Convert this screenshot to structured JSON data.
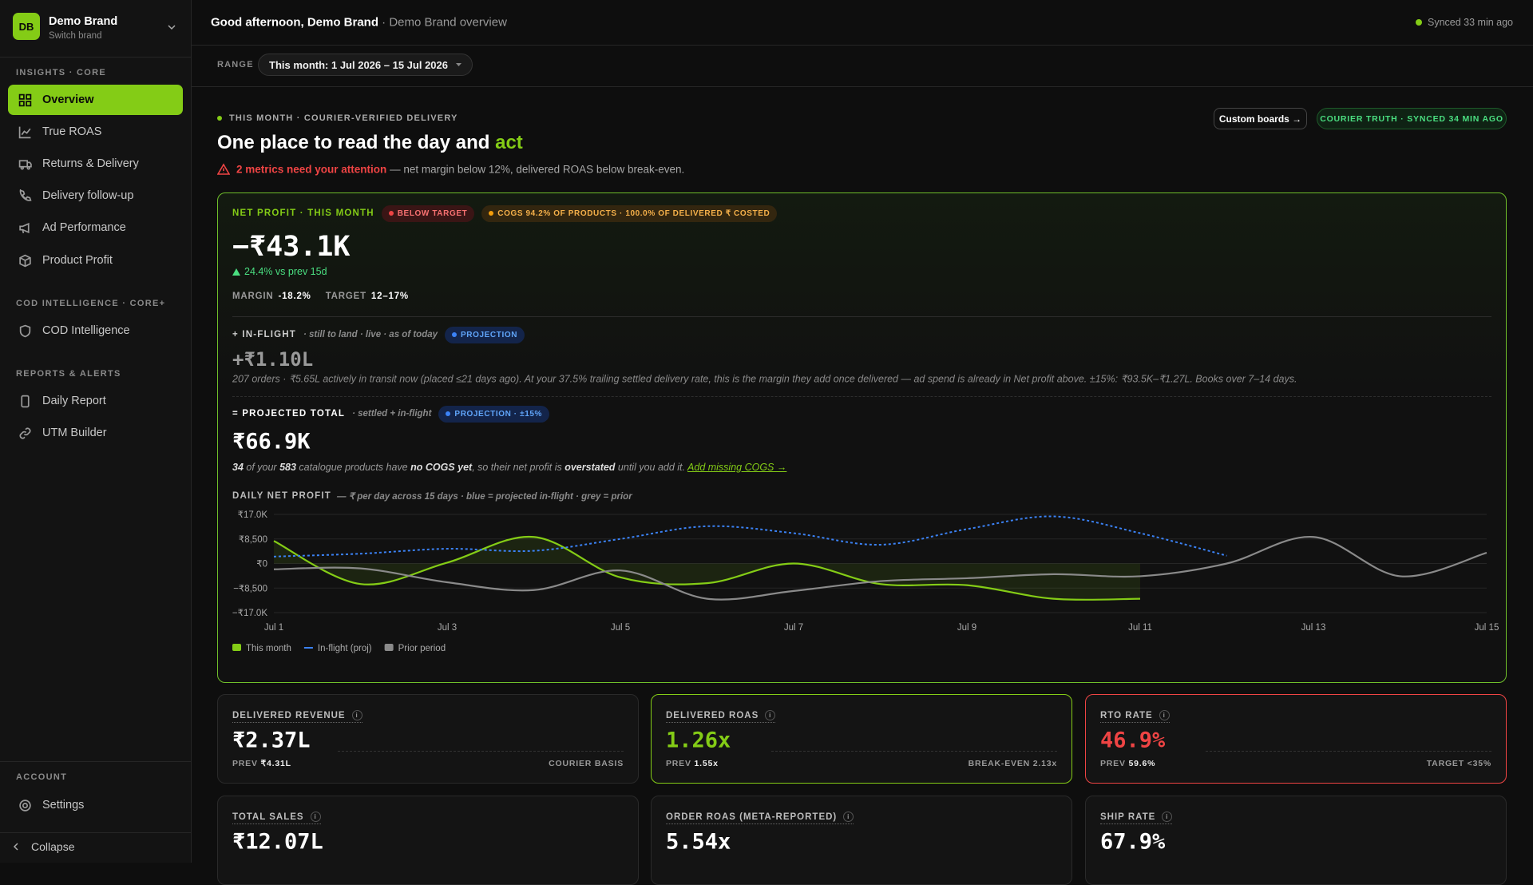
{
  "sidebar": {
    "brand_initials": "DB",
    "brand_name": "Demo Brand",
    "brand_sub": "Switch brand",
    "sections": [
      {
        "title": "INSIGHTS · CORE",
        "items": [
          "Overview",
          "True ROAS",
          "Returns & Delivery",
          "Delivery follow-up",
          "Ad Performance",
          "Product Profit"
        ]
      },
      {
        "title": "COD INTELLIGENCE · CORE+",
        "items": [
          "COD Intelligence"
        ]
      },
      {
        "title": "REPORTS & ALERTS",
        "items": [
          "Daily Report",
          "UTM Builder"
        ]
      },
      {
        "title": "ACCOUNT",
        "items": [
          "Settings"
        ]
      }
    ],
    "collapse": "Collapse"
  },
  "header": {
    "greeting": "Good afternoon, Demo Brand",
    "subtitle": "· Demo Brand overview",
    "sync_status": "Synced 33 min ago"
  },
  "range": {
    "label": "RANGE",
    "value": "This month: 1 Jul 2026 – 15 Jul 2026"
  },
  "hero": {
    "eyebrow": "THIS MONTH · COURIER-VERIFIED DELIVERY",
    "title": "One place to read the day and",
    "title_accent": "act",
    "button": "Custom boards →",
    "status_pill": "COURIER TRUTH · SYNCED 34 MIN AGO",
    "alert": "2 metrics need your attention",
    "alert_detail": "— net margin below 12%, delivered ROAS below break-even."
  },
  "net_profit": {
    "label": "NET PROFIT · THIS MONTH",
    "badges": [
      "BELOW TARGET",
      "COGS 94.2% OF PRODUCTS · 100.0% OF DELIVERED ₹ COSTED"
    ],
    "value": "−₹43.1K",
    "delta": "24.4% vs prev 15d",
    "margin_label": "MARGIN",
    "margin": "-18.2%",
    "target_label": "TARGET",
    "target": "12–17%"
  },
  "in_flight": {
    "label": "+ IN-FLIGHT",
    "sublabel": "· still to land · live · as of today",
    "badge": "PROJECTION",
    "value": "+₹1.10L",
    "description": "207 orders · ₹5.65L actively in transit now (placed ≤21 days ago). At your 37.5% trailing settled delivery rate, this is the margin they add once delivered — ad spend is already in Net profit above. ±15%: ₹93.5K–₹1.27L. Books over 7–14 days."
  },
  "projected_total": {
    "label": "= PROJECTED TOTAL",
    "sublabel": "· settled + in-flight",
    "badge": "PROJECTION · ±15%",
    "value": "₹66.9K",
    "note": [
      "34",
      " of your ",
      "583",
      " catalogue products have ",
      "no COGS yet",
      ", so their net profit is ",
      "overstated",
      " until you add it. "
    ],
    "link": "Add missing COGS →"
  },
  "chart": {
    "type": "line",
    "title": "DAILY NET PROFIT",
    "subtitle": "— ₹ per day across 15 days · blue = projected in-flight · grey = prior",
    "categories": [
      "Jul 1",
      null,
      "Jul 3",
      null,
      "Jul 5",
      null,
      "Jul 7",
      null,
      "Jul 9",
      null,
      "Jul 11",
      null,
      "Jul 13",
      null,
      "Jul 15"
    ],
    "ylim": [
      -17000,
      17000
    ],
    "yticks": [
      {
        "value": 17000,
        "label": "₹17.0K"
      },
      {
        "value": 8500,
        "label": "₹8,500"
      },
      {
        "value": 0,
        "label": "₹0"
      },
      {
        "value": -8500,
        "label": "−₹8,500"
      },
      {
        "value": -17000,
        "label": "−₹17.0K"
      }
    ],
    "grid": true,
    "series": [
      {
        "name": "This month",
        "color": "#84cc16",
        "values": [
          7800,
          -7100,
          300,
          9200,
          -4800,
          -6800,
          0,
          -7100,
          -7500,
          -12200,
          -12200,
          null,
          null,
          null,
          null
        ]
      },
      {
        "name": "In-flight (proj)",
        "color": "#3b82f6",
        "dashed": true,
        "values": [
          2400,
          3400,
          5100,
          4400,
          8500,
          12900,
          10500,
          6500,
          11900,
          16300,
          10500,
          2700,
          null,
          null,
          null
        ]
      },
      {
        "name": "Prior period",
        "color": "#8a8a8a",
        "values": [
          -2000,
          -1700,
          -6500,
          -9200,
          -2400,
          -12200,
          -9500,
          -6100,
          -5100,
          -3700,
          -4400,
          0,
          9200,
          -4400,
          3700
        ]
      }
    ]
  },
  "kpis": [
    {
      "label": "DELIVERED REVENUE",
      "value": "₹2.37L",
      "prev_label": "PREV",
      "prev": "₹4.31L",
      "note": "COURIER BASIS"
    },
    {
      "label": "DELIVERED ROAS",
      "value": "1.26x",
      "prev_label": "PREV",
      "prev": "1.55x",
      "note": "BREAK-EVEN 2.13x"
    },
    {
      "label": "RTO RATE",
      "value": "46.9%",
      "prev_label": "PREV",
      "prev": "59.6%",
      "note": "TARGET <35%"
    },
    {
      "label": "TOTAL SALES",
      "value": "₹12.07L"
    },
    {
      "label": "ORDER ROAS (META-REPORTED)",
      "value": "5.54x"
    },
    {
      "label": "SHIP RATE",
      "value": "67.9%"
    }
  ]
}
